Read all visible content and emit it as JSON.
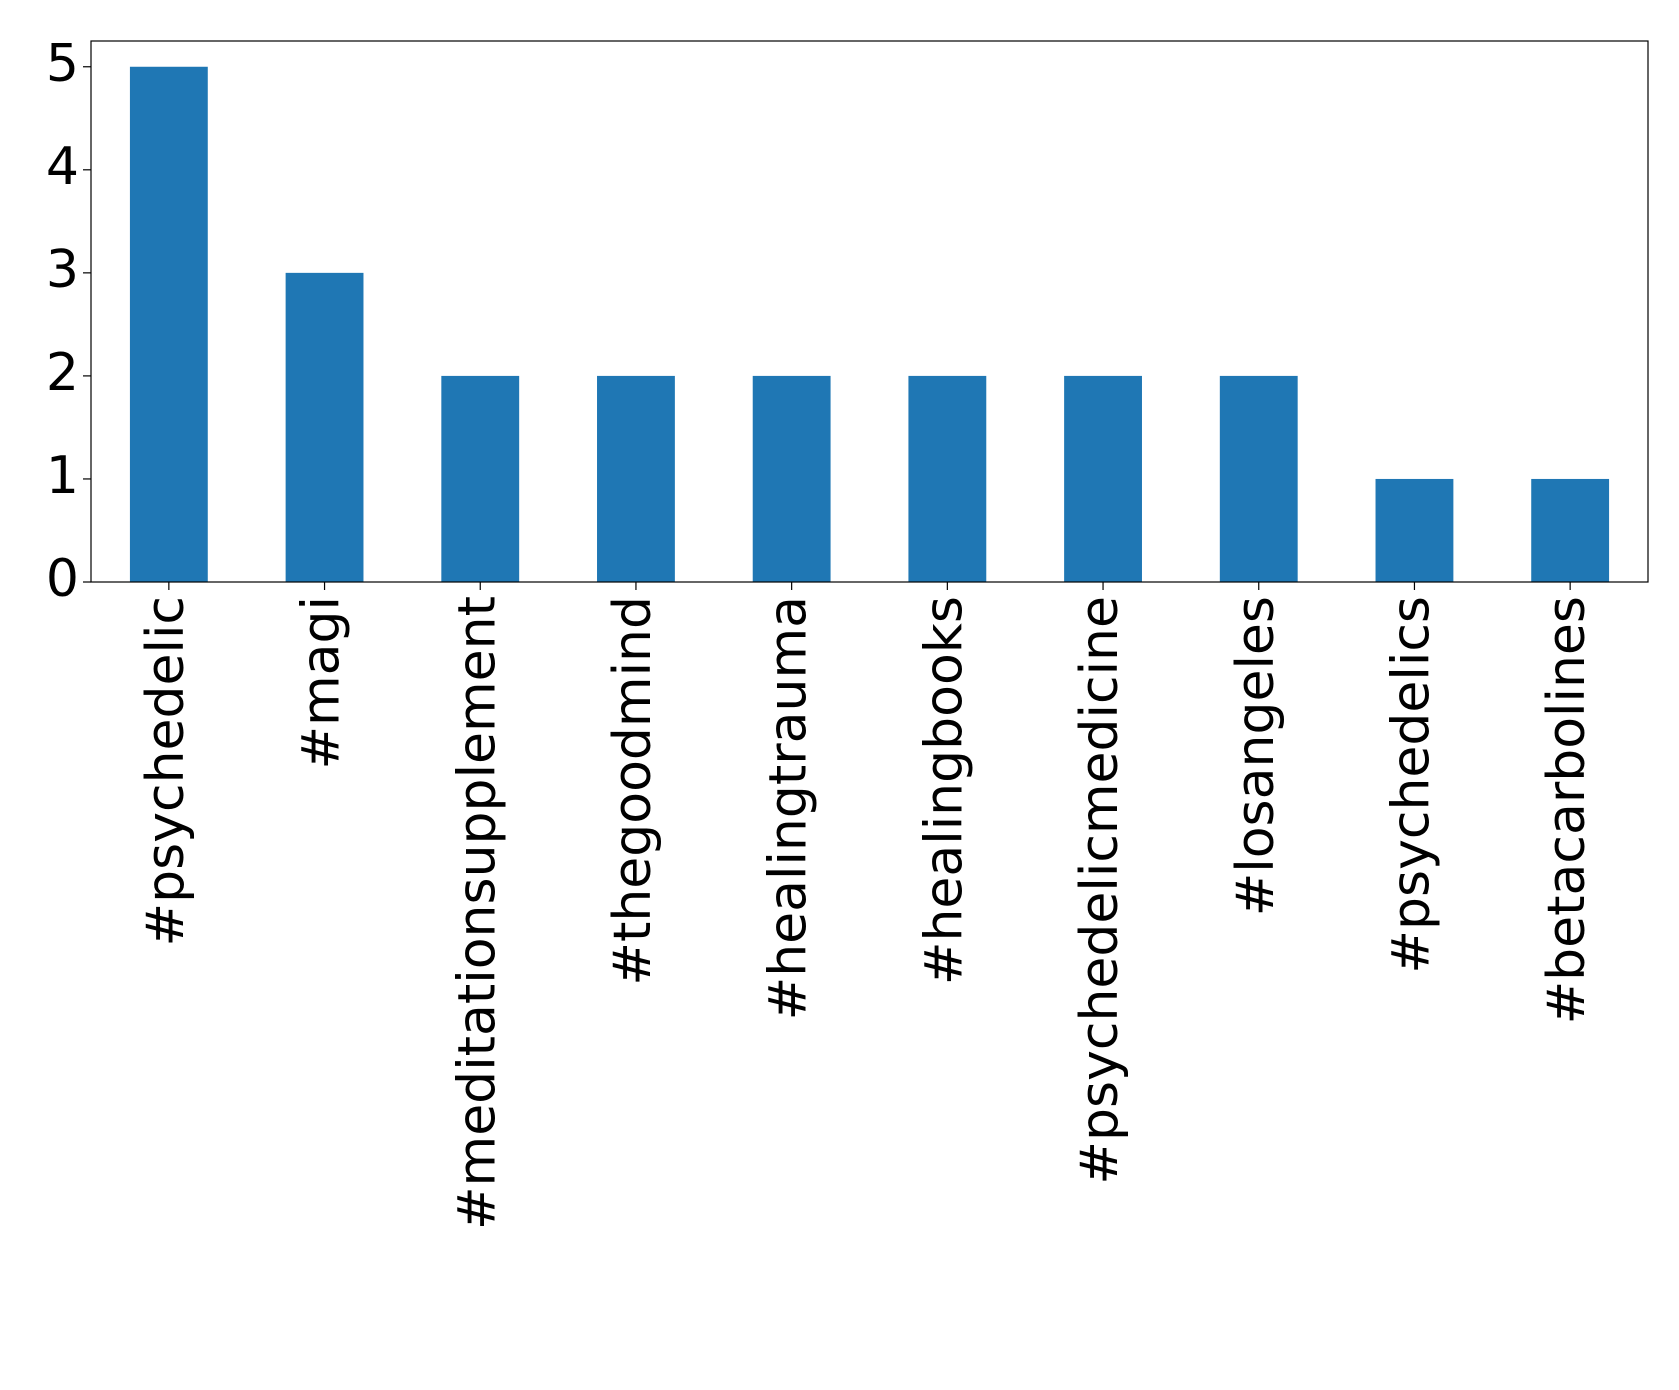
{
  "chart_data": {
    "type": "bar",
    "categories": [
      "#psychedelic",
      "#magi",
      "#meditationsupplement",
      "#thegoodmind",
      "#healingtrauma",
      "#healingbooks",
      "#psychedelicmedicine",
      "#losangeles",
      "#psychedelics",
      "#betacarbolines"
    ],
    "values": [
      5,
      3,
      2,
      2,
      2,
      2,
      2,
      2,
      1,
      1
    ],
    "color": "#1f77b4",
    "ylim": [
      0,
      5.25
    ],
    "yticks": [
      0,
      1,
      2,
      3,
      4,
      5
    ],
    "grid": false
  }
}
